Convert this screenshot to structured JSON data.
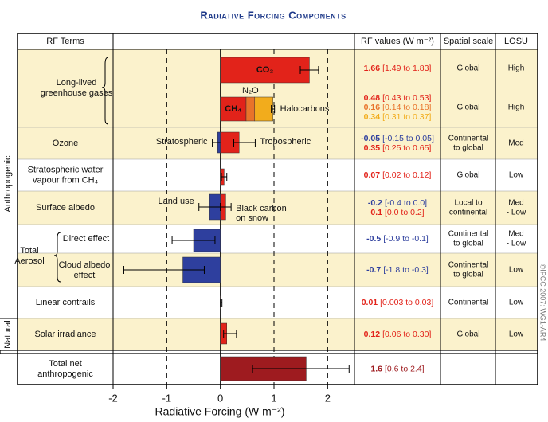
{
  "chart_data": {
    "type": "bar",
    "orientation": "horizontal",
    "title": "Radiative Forcing Components",
    "headers": [
      "RF Terms",
      "RF values (W m⁻²)",
      "Spatial scale",
      "LOSU"
    ],
    "xlabel": "Radiative Forcing (W m⁻²)",
    "xlim": [
      -2,
      2.5
    ],
    "xticks": [
      -2,
      -1,
      0,
      1,
      2
    ],
    "groups": [
      "Anthropogenic",
      "Natural"
    ],
    "credit": "©IPCC 2007: WG1-AR4",
    "aerosol_label": [
      "Total",
      "Aerosol"
    ],
    "rows": [
      {
        "label": [
          "Long-lived",
          "greenhouse gases"
        ],
        "scale": [
          "Global"
        ],
        "losu": [
          "High"
        ],
        "items": [
          {
            "label": [
              "CO₂"
            ],
            "value": 1.66,
            "range": [
              1.49,
              1.83
            ],
            "range_label": "[1.49 to 1.83]",
            "color": "#e2231a"
          }
        ]
      },
      {
        "stacked": true,
        "scale": [
          "Global"
        ],
        "losu": [
          "High"
        ],
        "items": [
          {
            "label": [
              "CH₄"
            ],
            "value": 0.48,
            "range": [
              0.43,
              0.53
            ],
            "range_label": "[0.43 to 0.53]",
            "color": "#e2231a"
          },
          {
            "label": [
              "N₂O"
            ],
            "value": 0.16,
            "range": [
              0.14,
              0.18
            ],
            "range_label": "[0.14 to 0.18]",
            "color": "#e8732a"
          },
          {
            "label": [
              "Halocarbons"
            ],
            "value": 0.34,
            "range": [
              0.31,
              0.37
            ],
            "range_label": "[0.31 to 0.37]",
            "color": "#f2ac1c"
          }
        ]
      },
      {
        "label": [
          "Ozone"
        ],
        "scale": [
          "Continental",
          "to global"
        ],
        "losu": [
          "Med"
        ],
        "items": [
          {
            "label": [
              "Stratospheric"
            ],
            "value": -0.05,
            "range": [
              -0.15,
              0.05
            ],
            "range_label": "[-0.15 to 0.05]",
            "color": "#2e3f9e"
          },
          {
            "label": [
              "Tropospheric"
            ],
            "value": 0.35,
            "range": [
              0.25,
              0.65
            ],
            "range_label": "[0.25 to 0.65]",
            "color": "#e2231a"
          }
        ]
      },
      {
        "label": [
          "Stratospheric water",
          "vapour from CH₄"
        ],
        "scale": [
          "Global"
        ],
        "losu": [
          "Low"
        ],
        "items": [
          {
            "value": 0.07,
            "range": [
              0.02,
              0.12
            ],
            "range_label": "[0.02 to 0.12]",
            "color": "#e2231a"
          }
        ]
      },
      {
        "label": [
          "Surface albedo"
        ],
        "scale": [
          "Local to",
          "continental"
        ],
        "losu": [
          "Med",
          "- Low"
        ],
        "items": [
          {
            "label": [
              "Land use"
            ],
            "value": -0.2,
            "range": [
              -0.4,
              0.0
            ],
            "range_label": "[-0.4 to 0.0]",
            "color": "#2e3f9e"
          },
          {
            "label": [
              "Black carbon",
              "on snow"
            ],
            "value": 0.1,
            "range": [
              0.0,
              0.2
            ],
            "range_label": "[0.0 to 0.2]",
            "color": "#e2231a"
          }
        ]
      },
      {
        "label": [
          "Direct effect"
        ],
        "scale": [
          "Continental",
          "to global"
        ],
        "losu": [
          "Med",
          "- Low"
        ],
        "items": [
          {
            "value": -0.5,
            "range": [
              -0.9,
              -0.1
            ],
            "range_label": "[-0.9 to -0.1]",
            "color": "#2e3f9e"
          }
        ]
      },
      {
        "label": [
          "Cloud albedo",
          "effect"
        ],
        "scale": [
          "Continental",
          "to global"
        ],
        "losu": [
          "Low"
        ],
        "items": [
          {
            "value": -0.7,
            "range": [
              -1.8,
              -0.3
            ],
            "range_label": "[-1.8 to -0.3]",
            "color": "#2e3f9e"
          }
        ]
      },
      {
        "label": [
          "Linear contrails"
        ],
        "scale": [
          "Continental"
        ],
        "losu": [
          "Low"
        ],
        "items": [
          {
            "value": 0.01,
            "range": [
              0.003,
              0.03
            ],
            "range_label": "[0.003 to 0.03]",
            "color": "#e2231a"
          }
        ]
      },
      {
        "label": [
          "Solar irradiance"
        ],
        "scale": [
          "Global"
        ],
        "losu": [
          "Low"
        ],
        "items": [
          {
            "value": 0.12,
            "range": [
              0.06,
              0.3
            ],
            "range_label": "[0.06 to 0.30]",
            "color": "#e2231a"
          }
        ]
      },
      {
        "label": [
          "Total net",
          "anthropogenic"
        ],
        "items": [
          {
            "value": 1.6,
            "range": [
              0.6,
              2.4
            ],
            "range_label": "[0.6 to 2.4]",
            "color": "#9e1b1f"
          }
        ]
      }
    ]
  }
}
